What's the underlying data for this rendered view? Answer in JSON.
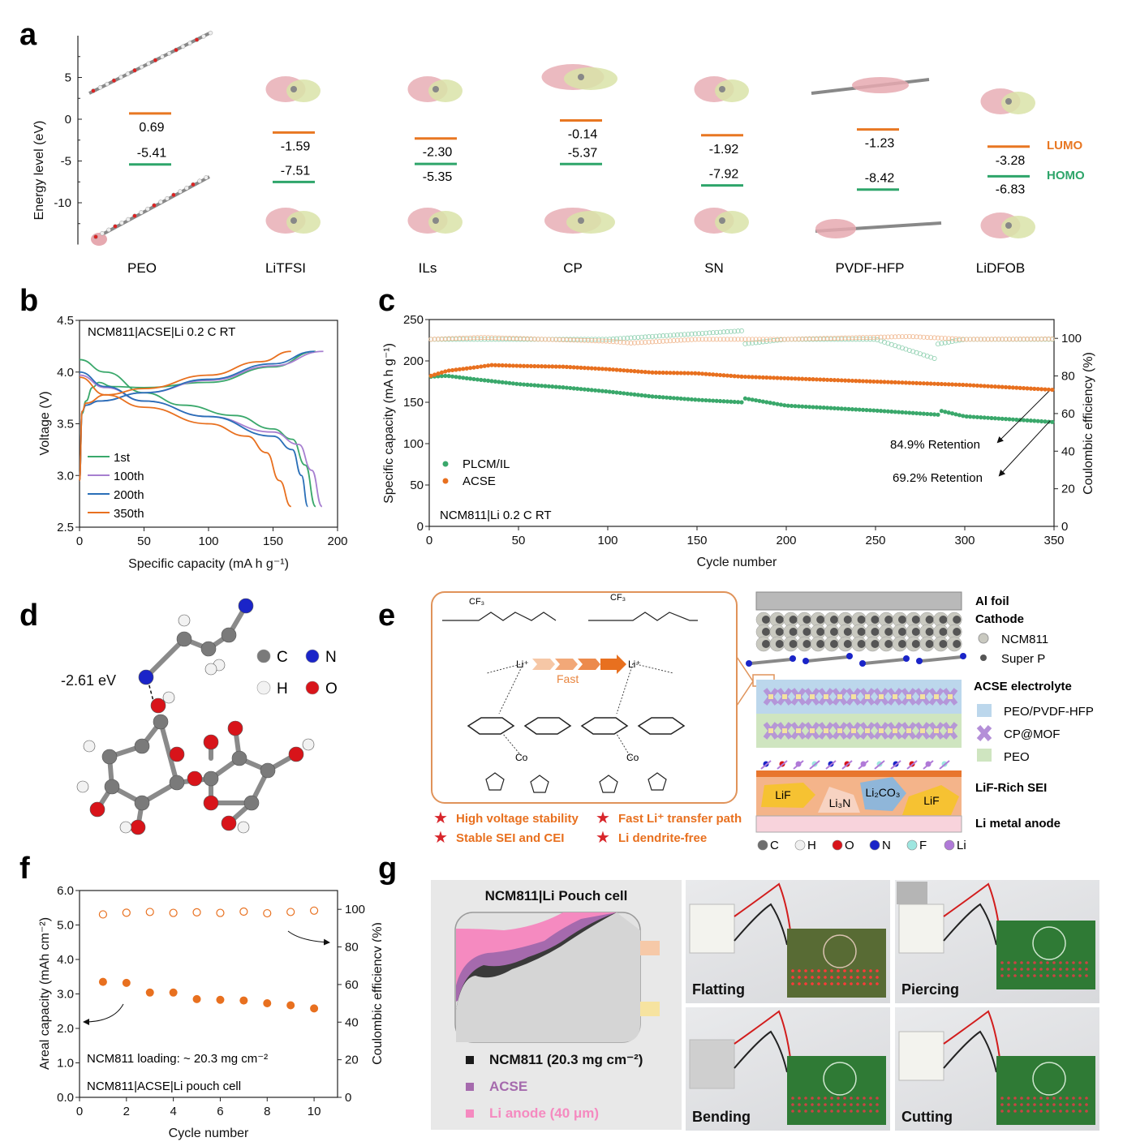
{
  "figure": {
    "panel_labels": [
      "a",
      "b",
      "c",
      "d",
      "e",
      "f",
      "g"
    ]
  },
  "panel_a": {
    "ylabel": "Energy level (eV)",
    "yticks": [
      "5",
      "0",
      "-5",
      "-10"
    ],
    "legend": {
      "lumo": "LUMO",
      "homo": "HOMO"
    },
    "colors": {
      "lumo": "#e87722",
      "homo": "#2ea56a"
    },
    "molecules": [
      {
        "name": "PEO",
        "lumo": 0.69,
        "homo": -5.41,
        "lumo_label": "0.69",
        "homo_label": "-5.41"
      },
      {
        "name": "LiTFSI",
        "lumo": -1.59,
        "homo": -7.51,
        "lumo_label": "-1.59",
        "homo_label": "-7.51"
      },
      {
        "name": "ILs",
        "lumo": -2.3,
        "homo": -5.35,
        "lumo_label": "-2.30",
        "homo_label": "-5.35"
      },
      {
        "name": "CP",
        "lumo": -0.14,
        "homo": -5.37,
        "lumo_label": "-0.14",
        "homo_label": "-5.37"
      },
      {
        "name": "SN",
        "lumo": -1.92,
        "homo": -7.92,
        "lumo_label": "-1.92",
        "homo_label": "-7.92"
      },
      {
        "name": "PVDF-HFP",
        "lumo": -1.23,
        "homo": -8.42,
        "lumo_label": "-1.23",
        "homo_label": "-8.42"
      },
      {
        "name": "LiDFOB",
        "lumo": -3.28,
        "homo": -6.83,
        "lumo_label": "-3.28",
        "homo_label": "-6.83"
      }
    ]
  },
  "chart_data": [
    {
      "id": "b",
      "type": "line",
      "title": "NCM811|ACSE|Li      0.2 C    RT",
      "xlabel": "Specific capacity (mA h g⁻¹)",
      "ylabel": "Voltage (V)",
      "xlim": [
        0,
        200
      ],
      "ylim": [
        2.5,
        4.5
      ],
      "xticks": [
        "0",
        "50",
        "100",
        "150",
        "200"
      ],
      "yticks": [
        "2.5",
        "3.0",
        "3.5",
        "4.0",
        "4.5"
      ],
      "legend_position": "bottom-left",
      "series": [
        {
          "name": "1st",
          "color": "#3aa86b",
          "charge": [
            [
              0,
              2.95
            ],
            [
              2,
              3.6
            ],
            [
              5,
              3.72
            ],
            [
              10,
              3.85
            ],
            [
              15,
              3.9
            ],
            [
              25,
              3.86
            ],
            [
              50,
              3.85
            ],
            [
              100,
              3.9
            ],
            [
              150,
              4.05
            ],
            [
              183,
              4.2
            ]
          ],
          "discharge": [
            [
              0,
              4.12
            ],
            [
              20,
              4.0
            ],
            [
              50,
              3.8
            ],
            [
              80,
              3.68
            ],
            [
              120,
              3.58
            ],
            [
              150,
              3.45
            ],
            [
              165,
              3.35
            ],
            [
              175,
              3.1
            ],
            [
              183,
              2.7
            ]
          ]
        },
        {
          "name": "100th",
          "color": "#a77fd0",
          "charge": [
            [
              0,
              2.95
            ],
            [
              2,
              3.62
            ],
            [
              5,
              3.68
            ],
            [
              15,
              3.72
            ],
            [
              50,
              3.8
            ],
            [
              100,
              3.92
            ],
            [
              150,
              4.06
            ],
            [
              189,
              4.2
            ]
          ],
          "discharge": [
            [
              0,
              3.97
            ],
            [
              20,
              3.85
            ],
            [
              50,
              3.72
            ],
            [
              100,
              3.57
            ],
            [
              150,
              3.42
            ],
            [
              170,
              3.3
            ],
            [
              180,
              3.05
            ],
            [
              188,
              2.7
            ]
          ]
        },
        {
          "name": "200th",
          "color": "#2a6fb8",
          "charge": [
            [
              0,
              2.95
            ],
            [
              2,
              3.62
            ],
            [
              5,
              3.68
            ],
            [
              15,
              3.72
            ],
            [
              50,
              3.8
            ],
            [
              100,
              3.93
            ],
            [
              150,
              4.08
            ],
            [
              182,
              4.2
            ]
          ],
          "discharge": [
            [
              0,
              4.0
            ],
            [
              20,
              3.86
            ],
            [
              50,
              3.72
            ],
            [
              100,
              3.57
            ],
            [
              150,
              3.38
            ],
            [
              165,
              3.25
            ],
            [
              172,
              3.0
            ],
            [
              177,
              2.7
            ]
          ]
        },
        {
          "name": "350th",
          "color": "#e8701f",
          "charge": [
            [
              0,
              2.95
            ],
            [
              2,
              3.62
            ],
            [
              5,
              3.7
            ],
            [
              20,
              3.78
            ],
            [
              50,
              3.84
            ],
            [
              100,
              3.97
            ],
            [
              140,
              4.1
            ],
            [
              164,
              4.2
            ]
          ],
          "discharge": [
            [
              0,
              3.95
            ],
            [
              20,
              3.78
            ],
            [
              50,
              3.66
            ],
            [
              100,
              3.5
            ],
            [
              130,
              3.38
            ],
            [
              145,
              3.22
            ],
            [
              155,
              2.95
            ],
            [
              164,
              2.7
            ]
          ]
        }
      ]
    },
    {
      "id": "c",
      "type": "scatter",
      "xlabel": "Cycle number",
      "ylabel": "Specific capacity (mA h g⁻¹)",
      "y2label": "Coulombic efficiency (%)",
      "xlim": [
        0,
        350
      ],
      "ylim": [
        0,
        250
      ],
      "y2lim": [
        0,
        110
      ],
      "xticks": [
        "0",
        "50",
        "100",
        "150",
        "200",
        "250",
        "300",
        "350"
      ],
      "yticks": [
        "0",
        "50",
        "100",
        "150",
        "200",
        "250"
      ],
      "y2ticks": [
        "0",
        "20",
        "40",
        "60",
        "80",
        "100"
      ],
      "annotation": "NCM811|Li  0.2 C  RT",
      "legend_position": "bottom-left",
      "retention_labels": [
        "84.9% Retention",
        "69.2% Retention"
      ],
      "series": [
        {
          "name": "PLCM/IL",
          "color": "#3aa86b",
          "axis": "left",
          "points": [
            [
              1,
              181
            ],
            [
              10,
              182
            ],
            [
              25,
              178
            ],
            [
              50,
              172
            ],
            [
              75,
              168
            ],
            [
              100,
              163
            ],
            [
              125,
              157
            ],
            [
              150,
              153
            ],
            [
              175,
              150
            ],
            [
              176,
              155
            ],
            [
              200,
              146
            ],
            [
              250,
              140
            ],
            [
              285,
              135
            ],
            [
              286,
              140
            ],
            [
              300,
              133
            ],
            [
              350,
              126
            ]
          ]
        },
        {
          "name": "ACSE",
          "color": "#e8701f",
          "axis": "left",
          "points": [
            [
              1,
              182
            ],
            [
              10,
              188
            ],
            [
              25,
              192
            ],
            [
              35,
              195
            ],
            [
              50,
              194
            ],
            [
              75,
              193
            ],
            [
              100,
              190
            ],
            [
              125,
              186
            ],
            [
              150,
              185
            ],
            [
              175,
              181
            ],
            [
              200,
              179
            ],
            [
              250,
              175
            ],
            [
              300,
              171
            ],
            [
              350,
              165
            ]
          ]
        },
        {
          "name": "PLCM/IL CE",
          "color": "#8fd0b0",
          "axis": "right",
          "hollow": true,
          "points": [
            [
              1,
              99.5
            ],
            [
              50,
              99.5
            ],
            [
              100,
              99.5
            ],
            [
              175,
              104
            ],
            [
              176,
              97
            ],
            [
              200,
              99.5
            ],
            [
              250,
              99.5
            ],
            [
              284,
              89
            ],
            [
              285,
              97
            ],
            [
              300,
              99.5
            ],
            [
              350,
              99.5
            ]
          ]
        },
        {
          "name": "ACSE CE",
          "color": "#f0b890",
          "axis": "right",
          "hollow": true,
          "points": [
            [
              1,
              99.5
            ],
            [
              30,
              100.5
            ],
            [
              100,
              98.5
            ],
            [
              113,
              97.5
            ],
            [
              150,
              99.5
            ],
            [
              200,
              99.5
            ],
            [
              269,
              101
            ],
            [
              300,
              99.5
            ],
            [
              350,
              99.7
            ]
          ]
        }
      ]
    },
    {
      "id": "f",
      "type": "scatter",
      "xlabel": "Cycle number",
      "ylabel": "Areal capacity (mAh cm⁻²)",
      "y2label": "Coulombic efficiency (%)",
      "xlim": [
        0,
        11
      ],
      "ylim": [
        0,
        6
      ],
      "y2lim": [
        0,
        110
      ],
      "xticks": [
        "0",
        "2",
        "4",
        "6",
        "8",
        "10"
      ],
      "yticks": [
        "0.0",
        "1.0",
        "2.0",
        "3.0",
        "4.0",
        "5.0",
        "6.0"
      ],
      "y2ticks": [
        "0",
        "20",
        "40",
        "60",
        "80",
        "100"
      ],
      "annotations": [
        "NCM811 loading: ~ 20.3 mg cm⁻²",
        "NCM811|ACSE|Li pouch cell"
      ],
      "series": [
        {
          "name": "Areal capacity",
          "color": "#e8701f",
          "axis": "left",
          "x": [
            1,
            2,
            3,
            4,
            5,
            6,
            7,
            8,
            9,
            10
          ],
          "values": [
            3.35,
            3.32,
            3.04,
            3.04,
            2.85,
            2.83,
            2.81,
            2.73,
            2.67,
            2.58
          ]
        },
        {
          "name": "Coulombic efficiency",
          "color": "#e8701f",
          "axis": "right",
          "hollow": true,
          "x": [
            1,
            2,
            3,
            4,
            5,
            6,
            7,
            8,
            9,
            10
          ],
          "values": [
            97.3,
            98.2,
            98.6,
            98.1,
            98.4,
            98.1,
            98.8,
            97.9,
            98.6,
            99.3
          ]
        }
      ]
    }
  ],
  "panel_d": {
    "binding_energy": "-2.61 eV",
    "legend": [
      {
        "symbol": "C",
        "color": "#7a7a7a"
      },
      {
        "symbol": "N",
        "color": "#1a24c8"
      },
      {
        "symbol": "H",
        "color": "#f2f2f2"
      },
      {
        "symbol": "O",
        "color": "#d8141a"
      }
    ]
  },
  "panel_e": {
    "scheme": {
      "li_label": "Li⁺",
      "fast_label": "Fast",
      "co_label": "Co",
      "cf3": "CF₃"
    },
    "features": [
      "High voltage stability",
      "Fast Li⁺ transfer path",
      "Stable SEI and CEI",
      "Li dendrite-free"
    ],
    "feature_color": "#e8701f",
    "layers": {
      "al_foil": "Al foil",
      "cathode": "Cathode",
      "ncm811": "NCM811",
      "super_p": "Super P",
      "acse": "ACSE electrolyte",
      "peo_pvdf": "PEO/PVDF-HFP",
      "cp_mof": "CP@MOF",
      "peo": "PEO",
      "sei": "LiF-Rich SEI",
      "anode": "Li metal anode"
    },
    "sei_components": [
      "LiF",
      "Li₃N",
      "Li₂CO₃",
      "LiF"
    ],
    "atom_legend": [
      {
        "symbol": "C",
        "color": "#6e6e6e"
      },
      {
        "symbol": "H",
        "color": "#f0f0f0"
      },
      {
        "symbol": "O",
        "color": "#d8141a"
      },
      {
        "symbol": "N",
        "color": "#1a24c8"
      },
      {
        "symbol": "F",
        "color": "#9ee6e0"
      },
      {
        "symbol": "Li",
        "color": "#b07ad8"
      }
    ]
  },
  "panel_g": {
    "title": "NCM811|Li Pouch cell",
    "legend": [
      {
        "label": "NCM811 (20.3 mg cm⁻²)",
        "color": "#1a1a1a"
      },
      {
        "label": "ACSE",
        "color": "#a56aad"
      },
      {
        "label": "Li anode (40 μm)",
        "color": "#f58ac0"
      }
    ],
    "photos": [
      "Flatting",
      "Piercing",
      "Bending",
      "Cutting"
    ]
  }
}
